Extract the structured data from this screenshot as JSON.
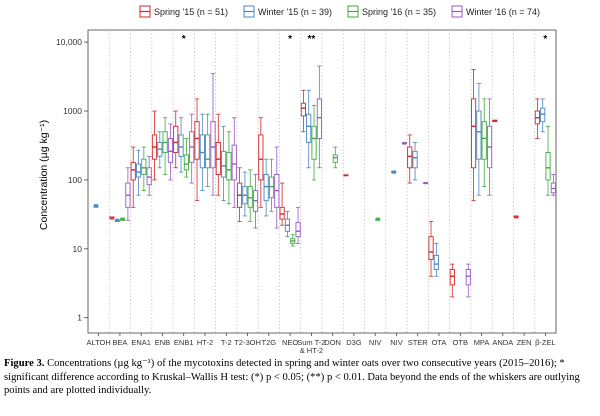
{
  "colors": {
    "spring15": "#d62728",
    "winter15": "#4a86c5",
    "spring16": "#3aae3a",
    "winter16": "#9b59c6"
  },
  "chart_data": {
    "type": "box",
    "title": "",
    "xlabel": "",
    "ylabel": "Concentration (µg kg⁻¹)",
    "yscale": "log",
    "ylim": [
      0.6,
      15000
    ],
    "yticks": [
      1,
      10,
      100,
      1000,
      10000
    ],
    "ytick_labels": [
      "1",
      "10",
      "100",
      "1000",
      "10,000"
    ],
    "grid": "dotted vertical separators between categories",
    "legend_position": "top",
    "series": [
      {
        "key": "spring15",
        "name": "Spring '15 (n = 51)"
      },
      {
        "key": "winter15",
        "name": "Winter '15 (n = 39)"
      },
      {
        "key": "spring16",
        "name": "Spring '16 (n = 35)"
      },
      {
        "key": "winter16",
        "name": "Winter '16 (n = 74)"
      }
    ],
    "categories": [
      {
        "label": "ALTOH",
        "sig": "",
        "boxes": {
          "winter15": [
            40,
            41,
            42,
            42,
            44
          ]
        }
      },
      {
        "label": "BEA",
        "sig": "",
        "boxes": {
          "spring15": [
            27,
            28,
            28,
            29,
            29
          ],
          "winter15": [
            25,
            25,
            26,
            26,
            27
          ],
          "spring16": [
            26,
            26,
            27,
            27,
            28
          ],
          "winter16": [
            26,
            40,
            60,
            90,
            150
          ]
        }
      },
      {
        "label": "ENA1",
        "sig": "",
        "boxes": {
          "spring15": [
            40,
            100,
            140,
            180,
            300
          ],
          "winter15": [
            60,
            110,
            130,
            170,
            270
          ],
          "spring16": [
            70,
            120,
            150,
            200,
            300
          ],
          "winter16": [
            60,
            85,
            110,
            150,
            220
          ]
        }
      },
      {
        "label": "ENB",
        "sig": "",
        "boxes": {
          "spring15": [
            100,
            200,
            300,
            450,
            1000
          ],
          "winter15": [
            150,
            220,
            280,
            350,
            500
          ],
          "spring16": [
            120,
            250,
            350,
            500,
            800
          ],
          "winter16": [
            100,
            180,
            260,
            400,
            650
          ]
        }
      },
      {
        "label": "ENB1",
        "sig": "*",
        "boxes": {
          "spring15": [
            150,
            250,
            350,
            600,
            1000
          ],
          "winter15": [
            130,
            220,
            300,
            450,
            800
          ],
          "spring16": [
            110,
            140,
            170,
            230,
            400
          ],
          "winter16": [
            90,
            180,
            300,
            500,
            900
          ]
        }
      },
      {
        "label": "HT-2",
        "sig": "",
        "boxes": {
          "spring15": [
            50,
            200,
            400,
            700,
            1500
          ],
          "winter15": [
            70,
            150,
            250,
            450,
            900
          ],
          "spring16": [
            80,
            150,
            200,
            450,
            900
          ],
          "winter16": [
            60,
            150,
            300,
            700,
            3500
          ]
        }
      },
      {
        "label": "T-2",
        "sig": "",
        "boxes": {
          "spring15": [
            60,
            120,
            200,
            350,
            900
          ],
          "winter15": [
            50,
            110,
            160,
            260,
            600
          ],
          "spring16": [
            45,
            100,
            140,
            250,
            500
          ],
          "winter16": [
            40,
            100,
            170,
            320,
            800
          ]
        }
      },
      {
        "label": "T2-3OH",
        "sig": "",
        "boxes": {
          "spring15": [
            25,
            40,
            60,
            90,
            150
          ],
          "winter15": [
            30,
            45,
            60,
            80,
            130
          ],
          "spring16": [
            25,
            40,
            55,
            80,
            140
          ],
          "winter16": [
            20,
            35,
            50,
            70,
            120
          ]
        }
      },
      {
        "label": "T2G",
        "sig": "",
        "boxes": {
          "spring15": [
            40,
            100,
            200,
            450,
            800
          ],
          "winter15": [
            30,
            50,
            80,
            120,
            200
          ],
          "spring16": [
            35,
            55,
            80,
            110,
            200
          ],
          "winter16": [
            20,
            40,
            70,
            120,
            300
          ]
        }
      },
      {
        "label": "NEO",
        "sig": "*",
        "boxes": {
          "spring15": [
            22,
            27,
            32,
            40,
            90
          ],
          "winter15": [
            15,
            18,
            22,
            27,
            35
          ],
          "spring16": [
            11,
            12,
            13,
            14,
            16
          ],
          "winter16": [
            12,
            15,
            18,
            24,
            40
          ]
        }
      },
      {
        "label": "Sum T-2\n& HT-2",
        "sig": "**",
        "boxes": {
          "spring15": [
            500,
            850,
            1100,
            1300,
            2000
          ],
          "winter15": [
            150,
            350,
            600,
            900,
            2000
          ],
          "spring16": [
            100,
            200,
            400,
            600,
            1200
          ],
          "winter16": [
            150,
            400,
            800,
            1500,
            4500
          ]
        }
      },
      {
        "label": "DON",
        "sig": "",
        "boxes": {
          "spring16": [
            150,
            180,
            210,
            230,
            300
          ]
        }
      },
      {
        "label": "D3G",
        "sig": "",
        "boxes": {
          "spring15": [
            115,
            116,
            117,
            118,
            119
          ]
        }
      },
      {
        "label": "NIV",
        "sig": "",
        "boxes": {
          "spring16": [
            26,
            26,
            27,
            27,
            28
          ]
        }
      },
      {
        "label": "NIV",
        "sig": "",
        "boxes": {
          "winter15": [
            125,
            128,
            130,
            132,
            135
          ],
          "winter16": [
            330,
            335,
            340,
            345,
            350
          ]
        }
      },
      {
        "label": "STER",
        "sig": "",
        "boxes": {
          "spring15": [
            90,
            150,
            220,
            300,
            450
          ],
          "winter15": [
            100,
            150,
            210,
            260,
            350
          ],
          "winter16": [
            88,
            89,
            90,
            91,
            92
          ]
        }
      },
      {
        "label": "OTA",
        "sig": "",
        "boxes": {
          "spring15": [
            4,
            7,
            9,
            15,
            25
          ],
          "winter15": [
            4,
            5,
            6,
            8,
            12
          ]
        }
      },
      {
        "label": "OTB",
        "sig": "",
        "boxes": {
          "spring15": [
            2,
            3,
            4,
            5,
            6
          ],
          "winter16": [
            2,
            3,
            4,
            5,
            6
          ]
        }
      },
      {
        "label": "MPA",
        "sig": "",
        "boxes": {
          "spring15": [
            50,
            150,
            600,
            1500,
            4000
          ],
          "winter15": [
            60,
            200,
            500,
            1000,
            2500
          ],
          "spring16": [
            80,
            200,
            400,
            700,
            1500
          ],
          "winter16": [
            60,
            150,
            300,
            600,
            1500
          ]
        }
      },
      {
        "label": "ANDA",
        "sig": "",
        "boxes": {
          "spring15": [
            700,
            710,
            720,
            730,
            740
          ]
        }
      },
      {
        "label": "ZEN",
        "sig": "",
        "boxes": {
          "spring15": [
            28,
            29,
            29,
            30,
            30
          ]
        }
      },
      {
        "label": "β-ZEL",
        "sig": "*",
        "boxes": {
          "spring15": [
            400,
            650,
            800,
            1000,
            1500
          ],
          "winter15": [
            500,
            700,
            900,
            1100,
            1500
          ],
          "spring16": [
            60,
            100,
            150,
            250,
            600
          ],
          "winter16": [
            60,
            65,
            75,
            90,
            120
          ]
        }
      }
    ]
  },
  "caption": {
    "figure": "Figure 3.",
    "text": "Concentrations (µg kg⁻¹) of the mycotoxins detected in spring and winter oats over two consecutive years (2015–2016); * significant difference according to Kruskal–Wallis H test: (*) p < 0.05; (**) p < 0.01. Data beyond the ends of the whiskers are outlying points and are plotted individually."
  }
}
